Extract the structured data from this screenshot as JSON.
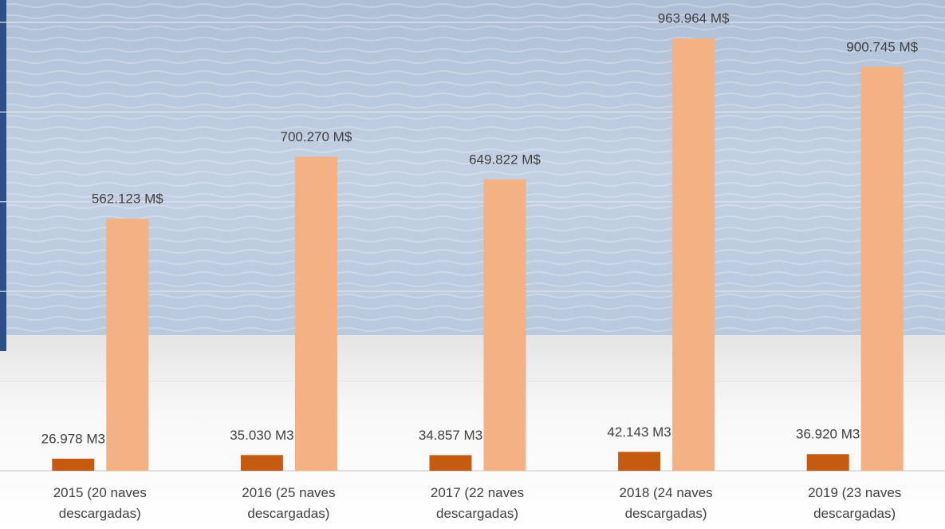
{
  "chart_data": {
    "type": "bar",
    "categories": [
      "2015 (20 naves descargadas)",
      "2016 (25 naves descargadas)",
      "2017 (22 naves descargadas)",
      "2018 (24 naves descargadas)",
      "2019 (23 naves descargadas)"
    ],
    "series": [
      {
        "color": "#c55a11",
        "values": [
          26978,
          35030,
          34857,
          42143,
          36920
        ],
        "value_labels": [
          "26.978 M3",
          "35.030 M3",
          "34.857 M3",
          "42.143 M3",
          "36.920 M3"
        ]
      },
      {
        "color": "#f4b183",
        "values": [
          562123,
          700270,
          649822,
          963964,
          900745
        ],
        "value_labels": [
          "562.123  M$",
          "700.270  M$",
          "649.822  M$",
          "963.964  M$",
          "900.745  M$"
        ]
      }
    ],
    "ylim": [
      0,
      1000000
    ],
    "yticks": [
      0,
      200000,
      400000,
      600000,
      800000,
      1000000
    ],
    "grid": true
  }
}
